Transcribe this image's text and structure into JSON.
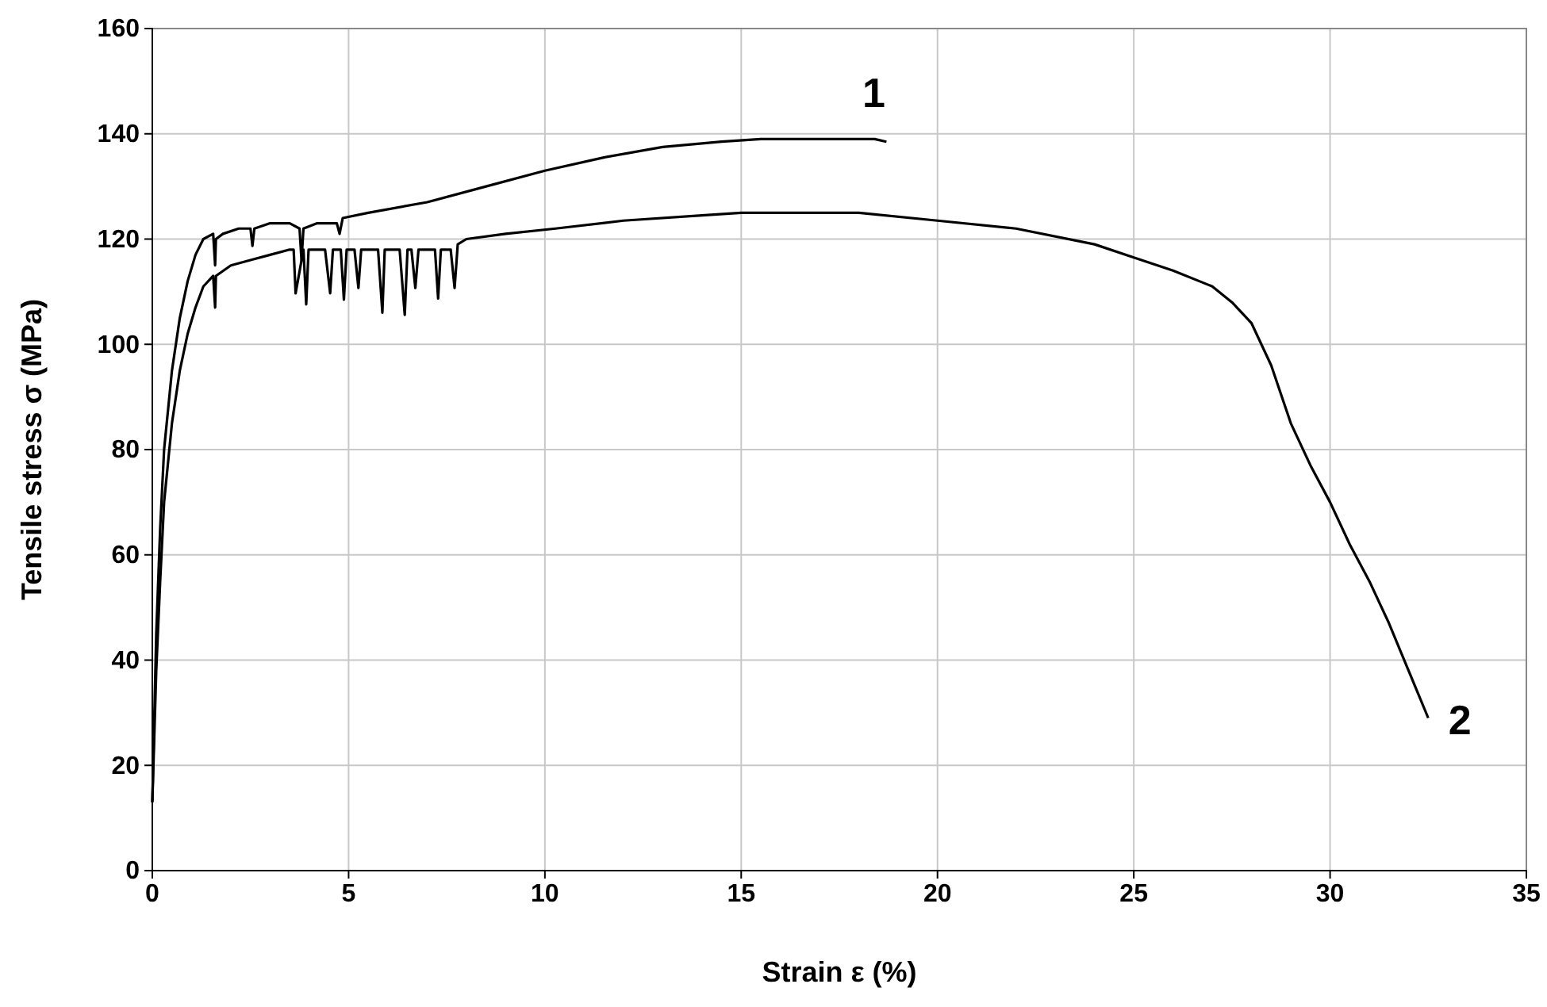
{
  "chart_data": {
    "type": "line",
    "xlabel": "Strain ε (%)",
    "ylabel": "Tensile stress σ (MPa)",
    "xlim": [
      0,
      35
    ],
    "ylim": [
      0,
      160
    ],
    "xticks": [
      0,
      5,
      10,
      15,
      20,
      25,
      30,
      35
    ],
    "yticks": [
      0,
      20,
      40,
      60,
      80,
      100,
      120,
      140,
      160
    ],
    "grid": true,
    "marker": "none",
    "line_style": "solid",
    "series": [
      {
        "name": "1",
        "color": "#000000",
        "x": [
          0,
          0.1,
          0.2,
          0.3,
          0.5,
          0.7,
          0.9,
          1.1,
          1.3,
          1.55,
          1.6,
          1.62,
          1.8,
          2.2,
          2.5,
          2.55,
          2.6,
          3.0,
          3.5,
          3.75,
          3.8,
          3.85,
          4.2,
          4.7,
          4.77,
          4.85,
          5.5,
          7,
          8.5,
          10,
          11.5,
          13,
          14.5,
          15.5,
          16,
          17,
          18.4,
          18.7
        ],
        "values": [
          13,
          45,
          65,
          80,
          95,
          105,
          112,
          117,
          120,
          121,
          115,
          120,
          121,
          122,
          122,
          118.7,
          122,
          123,
          123,
          122,
          116,
          122,
          123,
          123,
          121,
          124,
          125,
          127,
          130,
          133,
          135.5,
          137.5,
          138.5,
          139,
          139,
          139,
          139,
          138.5
        ]
      },
      {
        "name": "2",
        "color": "#000000",
        "x": [
          0,
          0.1,
          0.2,
          0.3,
          0.5,
          0.7,
          0.9,
          1.1,
          1.3,
          1.55,
          1.6,
          1.62,
          2,
          2.5,
          3,
          3.5,
          3.6,
          3.65,
          3.85,
          3.92,
          3.98,
          4.4,
          4.53,
          4.6,
          4.8,
          4.88,
          4.95,
          5.15,
          5.25,
          5.32,
          5.75,
          5.86,
          5.92,
          6.3,
          6.43,
          6.5,
          6.6,
          6.7,
          6.78,
          7.2,
          7.28,
          7.35,
          7.6,
          7.7,
          7.78,
          8,
          9,
          10.27,
          12,
          14,
          15,
          16,
          17,
          18,
          20,
          22,
          24,
          25,
          26,
          27,
          27.5,
          28,
          28.5,
          29,
          29.5,
          30,
          30.5,
          31,
          31.5,
          32,
          32.5
        ],
        "values": [
          13,
          38,
          55,
          70,
          85,
          95,
          102,
          107,
          111,
          113,
          107,
          113,
          115,
          116,
          117,
          118,
          118,
          109.7,
          118,
          107.6,
          118,
          118,
          109.7,
          118,
          118,
          108.5,
          118,
          118,
          110.7,
          118,
          118,
          106,
          118,
          118,
          105.6,
          118,
          118,
          110.7,
          118,
          118,
          108.7,
          118,
          118,
          110.7,
          119,
          120,
          121,
          122,
          123.5,
          124.5,
          125,
          125,
          125,
          125,
          123.5,
          122,
          119,
          116.5,
          114,
          111,
          108,
          104,
          96,
          85,
          77,
          70,
          62,
          55,
          47,
          38,
          29
        ]
      }
    ]
  }
}
